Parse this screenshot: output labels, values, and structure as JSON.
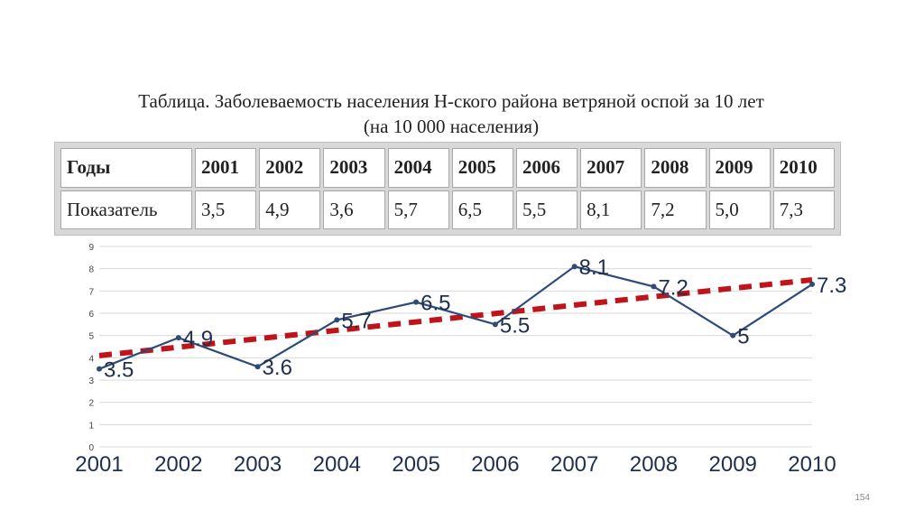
{
  "caption": {
    "line1": "Таблица. Заболеваемость населения Н-ского района ветряной оспой за 10 лет",
    "line2": "(на 10 000 населения)"
  },
  "table": {
    "header": [
      "Годы",
      "2001",
      "2002",
      "2003",
      "2004",
      "2005",
      "2006",
      "2007",
      "2008",
      "2009",
      "2010"
    ],
    "row": [
      "Показатель",
      "3,5",
      "4,9",
      "3,6",
      "5,7",
      "6,5",
      "5,5",
      "8,1",
      "7,2",
      "5,0",
      "7,3"
    ]
  },
  "chart_data": {
    "type": "line",
    "categories": [
      "2001",
      "2002",
      "2003",
      "2004",
      "2005",
      "2006",
      "2007",
      "2008",
      "2009",
      "2010"
    ],
    "series": [
      {
        "values": [
          3.5,
          4.9,
          3.6,
          5.7,
          6.5,
          5.5,
          8.1,
          7.2,
          5,
          7.3
        ],
        "labels": [
          "3.5",
          "4.9",
          "3.6",
          "5.7",
          "6.5",
          "5.5",
          "8.1",
          "7.2",
          "5",
          "7.3"
        ],
        "color": "#2e4a78"
      }
    ],
    "trendline": {
      "kind": "linear",
      "start": 4.1,
      "end": 7.5,
      "color": "#c0141b",
      "style": "dashed"
    },
    "ylim": [
      0,
      9
    ],
    "yticks": [
      "0",
      "1",
      "2",
      "3",
      "4",
      "5",
      "6",
      "7",
      "8",
      "9"
    ],
    "grid": true,
    "title": "",
    "xlabel": "",
    "ylabel": ""
  },
  "page_number": "154"
}
